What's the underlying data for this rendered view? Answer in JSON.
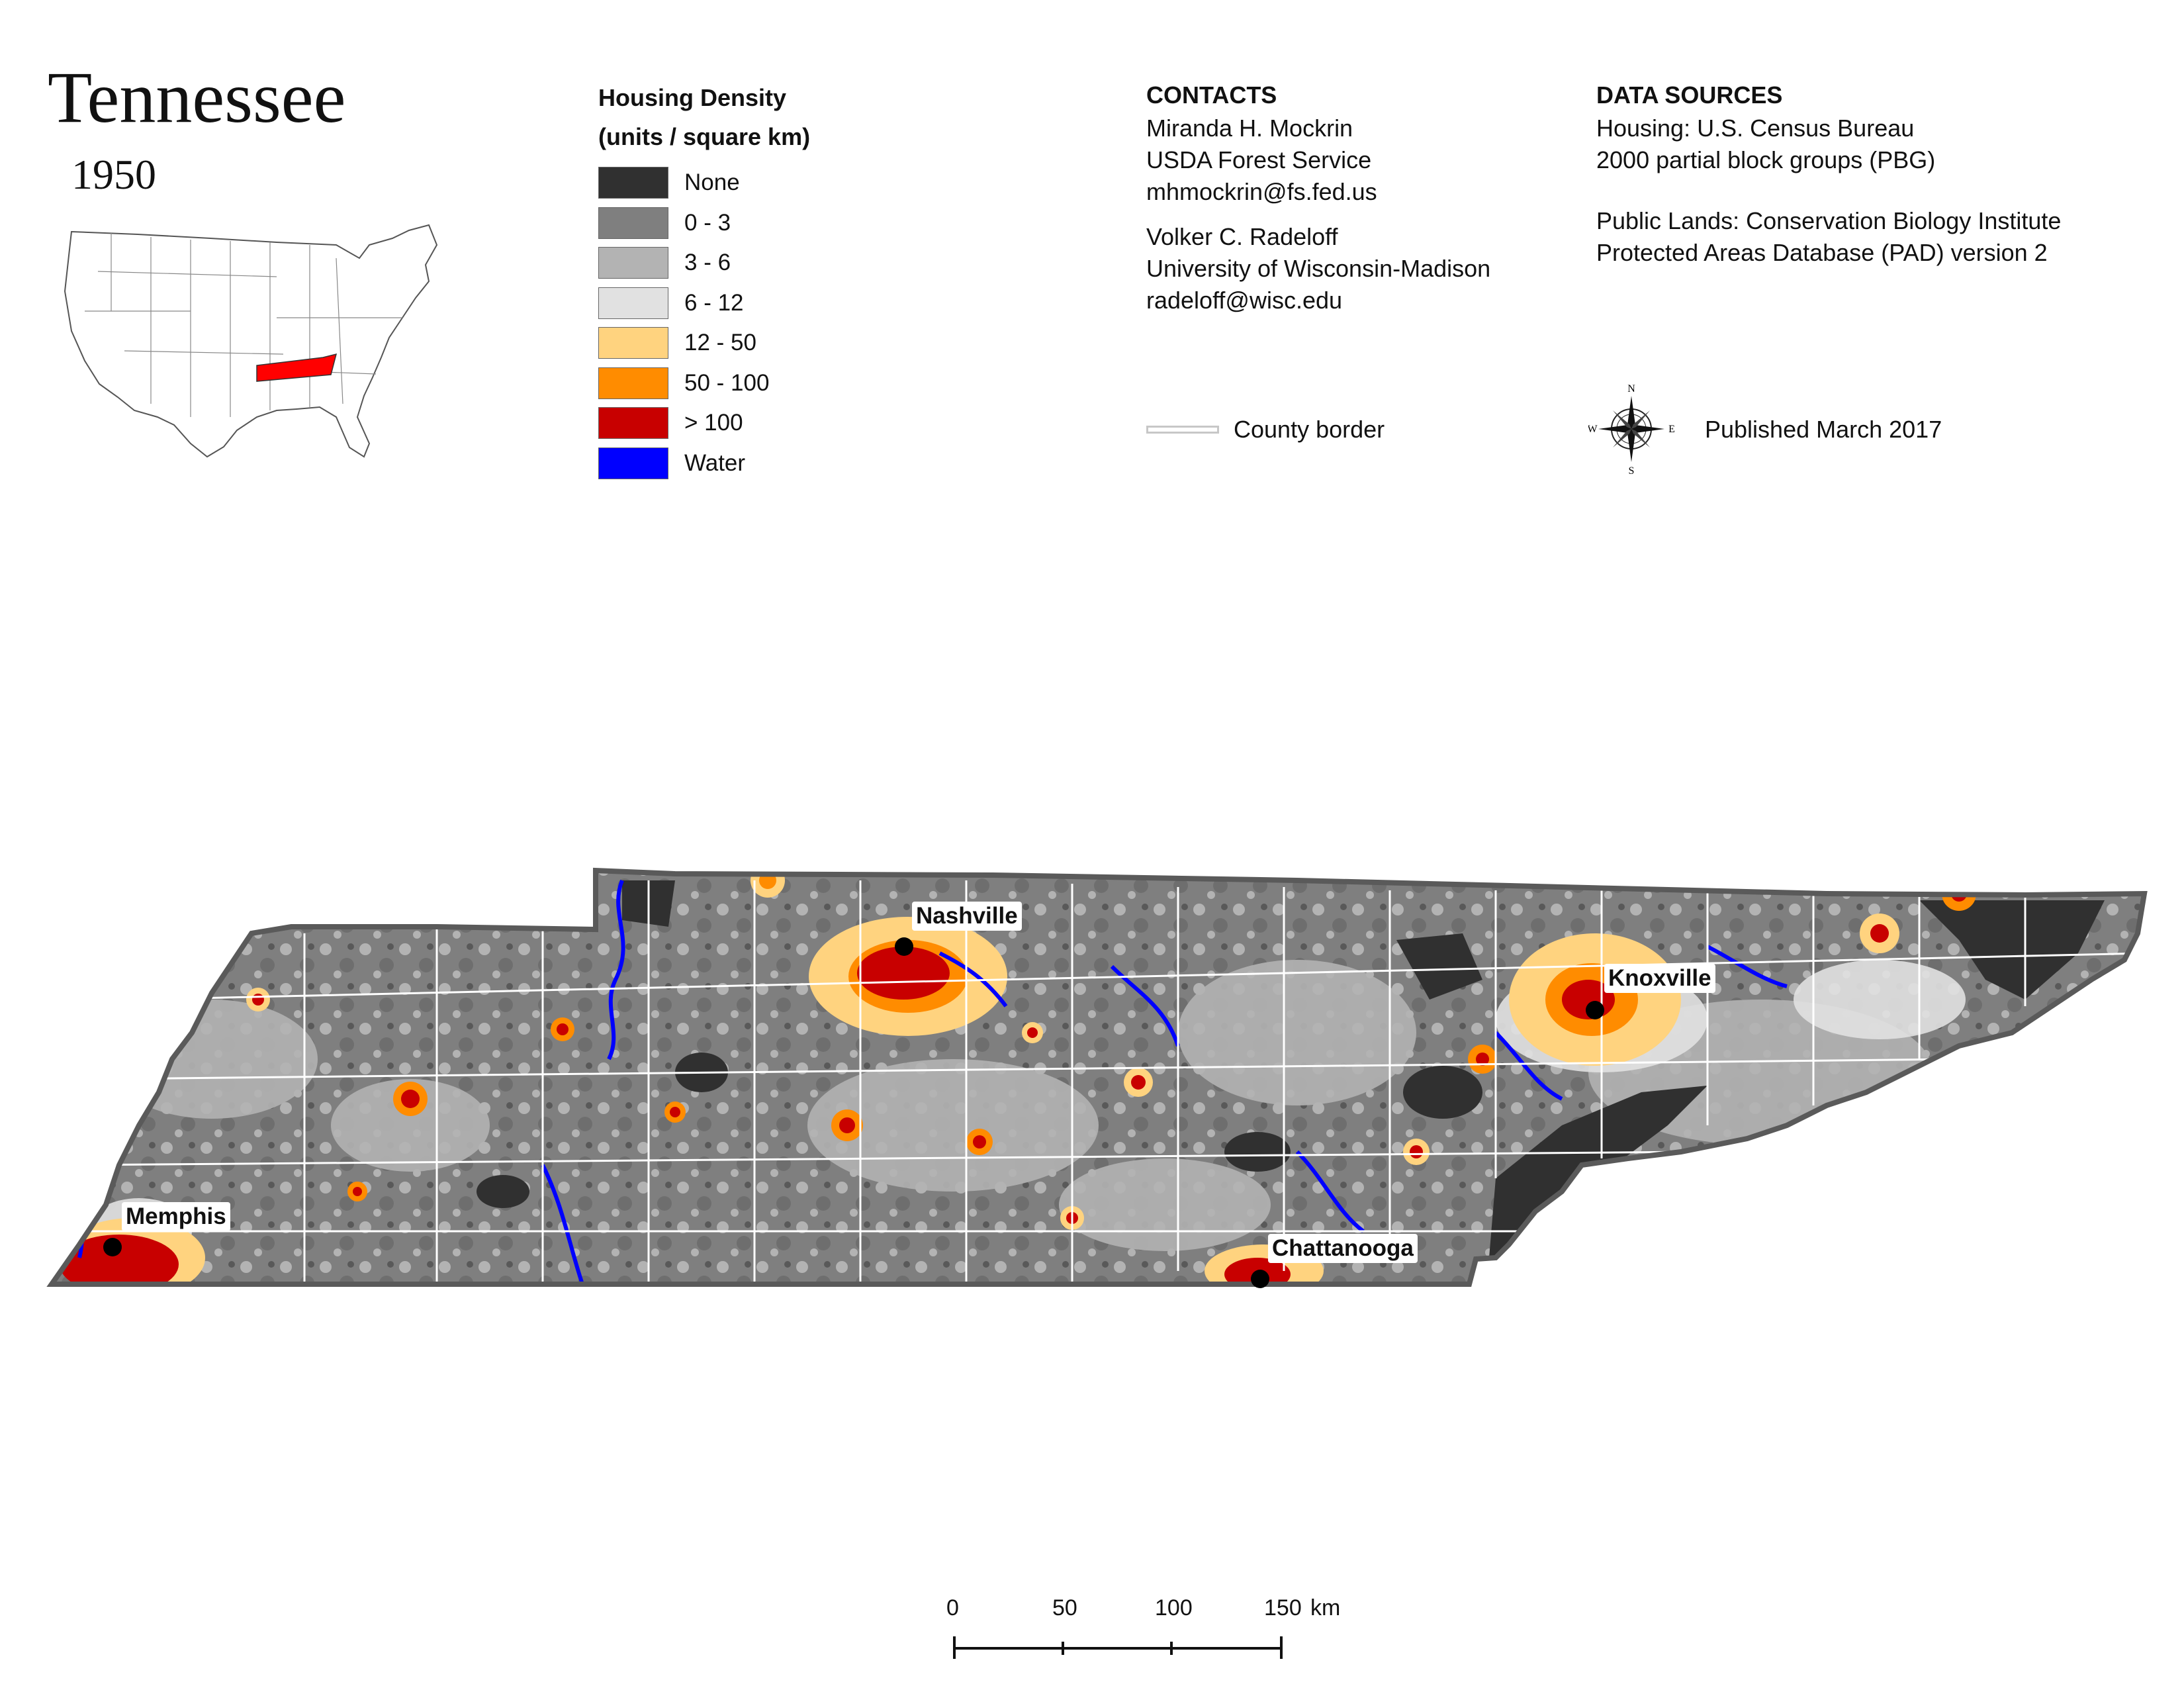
{
  "header": {
    "title": "Tennessee",
    "year": "1950"
  },
  "legend": {
    "title_line1": "Housing Density",
    "title_line2": "(units / square km)",
    "items": [
      {
        "label": "None",
        "color": "#303030"
      },
      {
        "label": "0 - 3",
        "color": "#7f7f7f"
      },
      {
        "label": "3 - 6",
        "color": "#b3b3b3"
      },
      {
        "label": "6 - 12",
        "color": "#e1e1e1"
      },
      {
        "label": "12 - 50",
        "color": "#ffd37f"
      },
      {
        "label": "50 - 100",
        "color": "#ff8c00"
      },
      {
        "label": "> 100",
        "color": "#c80000"
      },
      {
        "label": "Water",
        "color": "#0000ff"
      }
    ],
    "county_border_label": "County border"
  },
  "contacts": {
    "heading": "CONTACTS",
    "person1": {
      "name": "Miranda H. Mockrin",
      "org": "USDA Forest Service",
      "email": "mhmockrin@fs.fed.us"
    },
    "person2": {
      "name": "Volker C. Radeloff",
      "org": "University of Wisconsin-Madison",
      "email": "radeloff@wisc.edu"
    }
  },
  "sources": {
    "heading": "DATA SOURCES",
    "housing_line1": "Housing: U.S. Census Bureau",
    "housing_line2": "2000 partial block groups (PBG)",
    "lands_line1": "Public Lands: Conservation Biology Institute",
    "lands_line2": "Protected Areas Database (PAD) version 2"
  },
  "compass": {
    "n": "N",
    "s": "S",
    "e": "E",
    "w": "W"
  },
  "published": "Published March 2017",
  "cities": [
    {
      "name": "Memphis"
    },
    {
      "name": "Nashville"
    },
    {
      "name": "Knoxville"
    },
    {
      "name": "Chattanooga"
    }
  ],
  "scale": {
    "labels": [
      "0",
      "50",
      "100",
      "150"
    ],
    "unit": "km"
  },
  "colors": {
    "county_border": "#ffffff",
    "state_outline": "#5a5a5a",
    "inset_state": "#ff0000"
  }
}
